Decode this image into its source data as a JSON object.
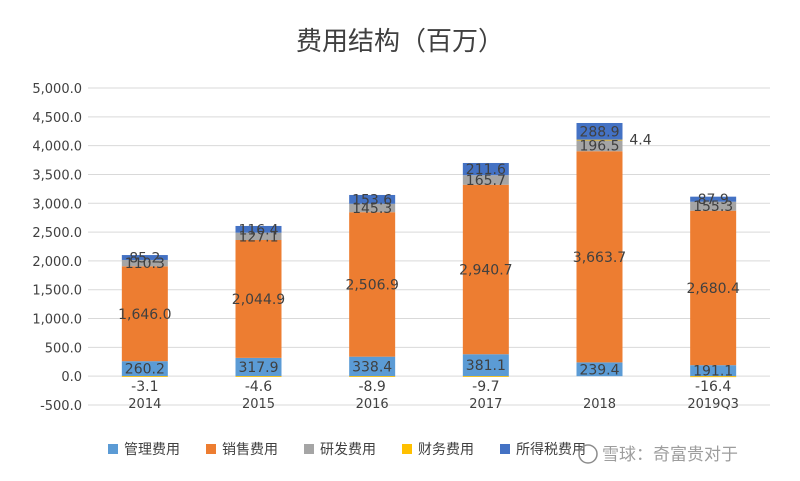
{
  "chart_data": {
    "type": "bar",
    "stacked": true,
    "title": "费用结构（百万）",
    "categories": [
      "2014",
      "2015",
      "2016",
      "2017",
      "2018",
      "2019Q3"
    ],
    "ylim": [
      -500,
      5000
    ],
    "ytick_step": 500,
    "ytick_labels": [
      "-500.0",
      "0.0",
      "500.0",
      "1,000.0",
      "1,500.0",
      "2,000.0",
      "2,500.0",
      "3,000.0",
      "3,500.0",
      "4,000.0",
      "4,500.0",
      "5,000.0"
    ],
    "grid": true,
    "legend_position": "bottom",
    "series": [
      {
        "name": "管理费用",
        "color": "#5B9BD5",
        "values": [
          260.2,
          317.9,
          338.4,
          381.1,
          239.4,
          191.1
        ],
        "labels": [
          "260.2",
          "317.9",
          "338.4",
          "381.1",
          "239.4",
          "191.1"
        ]
      },
      {
        "name": "销售费用",
        "color": "#ED7D31",
        "values": [
          1646.0,
          2044.9,
          2506.9,
          2940.7,
          3663.7,
          2680.4
        ],
        "labels": [
          "1,646.0",
          "2,044.9",
          "2,506.9",
          "2,940.7",
          "3,663.7",
          "2,680.4"
        ]
      },
      {
        "name": "研发费用",
        "color": "#A5A5A5",
        "values": [
          110.3,
          127.1,
          145.3,
          165.7,
          196.5,
          155.3
        ],
        "labels": [
          "110.3",
          "127.1",
          "145.3",
          "165.7",
          "196.5",
          "155.3"
        ]
      },
      {
        "name": "财务费用",
        "color": "#FFC000",
        "values": [
          -3.1,
          -4.6,
          -8.9,
          -9.7,
          4.4,
          -16.4
        ],
        "labels": [
          "-3.1",
          "-4.6",
          "-8.9",
          "-9.7",
          "4.4",
          "-16.4"
        ]
      },
      {
        "name": "所得税费用",
        "color": "#4472C4",
        "values": [
          85.2,
          116.4,
          153.6,
          211.6,
          288.9,
          87.9
        ],
        "labels": [
          "85.2",
          "116.4",
          "153.6",
          "211.6",
          "288.9",
          "87.9"
        ]
      }
    ]
  },
  "watermark": {
    "text": "雪球：奇富贵对于"
  },
  "colors": {
    "axis_text": "#404040",
    "gridline": "#d9d9d9",
    "background": "#ffffff"
  }
}
